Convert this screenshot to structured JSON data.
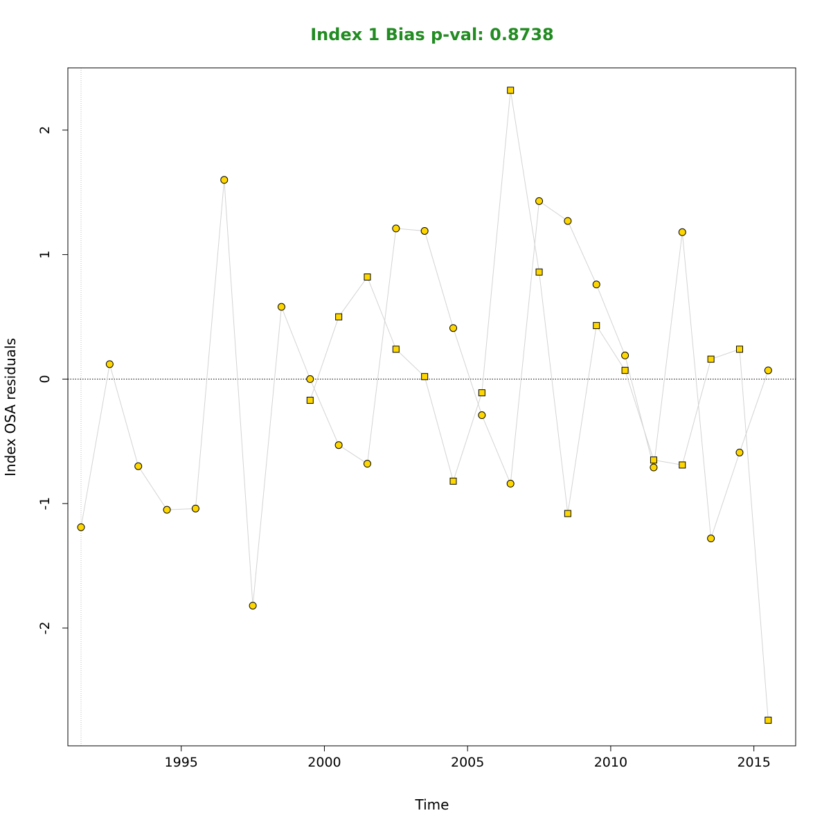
{
  "chart_data": {
    "type": "scatter",
    "title": "Index 1 Bias p-val: 0.8738",
    "xlabel": "Time",
    "ylabel": "Index OSA residuals",
    "xlim": [
      1991.04,
      2016.46
    ],
    "ylim": [
      -2.946,
      2.5
    ],
    "x_ticks": [
      1995,
      2000,
      2005,
      2010,
      2015
    ],
    "y_ticks": [
      -2,
      -1,
      0,
      1,
      2
    ],
    "x_tick_labels": [
      "1995",
      "2000",
      "2005",
      "2010",
      "2015"
    ],
    "y_tick_labels": [
      "-2",
      "-1",
      "0",
      "1",
      "2"
    ],
    "reference_line_y": 0,
    "reference_line_x": 1991.5,
    "grid": false,
    "colors": {
      "title": "#228B22",
      "marker_fill": "#FFD700",
      "marker_stroke": "#000000",
      "connector": "#D3D3D3",
      "reference": "#000000"
    },
    "series": [
      {
        "marker": "circle",
        "x": [
          1991.5,
          1992.5,
          1993.5,
          1994.5,
          1995.5,
          1996.5,
          1997.5,
          1998.5,
          1999.5,
          2000.5,
          2001.5,
          2002.5,
          2003.5,
          2004.5,
          2005.5,
          2006.5,
          2007.5,
          2008.5,
          2009.5,
          2010.5,
          2011.5,
          2012.5,
          2013.5,
          2014.5,
          2015.5
        ],
        "y": [
          -1.19,
          0.12,
          -0.7,
          -1.05,
          -1.04,
          1.6,
          -1.82,
          0.58,
          0.0,
          -0.53,
          -0.68,
          1.21,
          1.19,
          0.41,
          -0.29,
          -0.84,
          1.43,
          1.27,
          0.76,
          0.19,
          -0.71,
          1.18,
          -1.28,
          -0.59,
          0.07
        ]
      },
      {
        "marker": "square",
        "x": [
          1999.5,
          2000.5,
          2001.5,
          2002.5,
          2003.5,
          2004.5,
          2005.5,
          2006.5,
          2007.5,
          2008.5,
          2009.5,
          2010.5,
          2011.5,
          2012.5,
          2013.5,
          2014.5,
          2015.5
        ],
        "y": [
          -0.17,
          0.5,
          0.82,
          0.24,
          0.02,
          -0.82,
          -0.11,
          2.32,
          0.86,
          -1.08,
          0.43,
          0.07,
          -0.65,
          -0.69,
          0.16,
          0.24,
          -2.74
        ]
      }
    ]
  }
}
